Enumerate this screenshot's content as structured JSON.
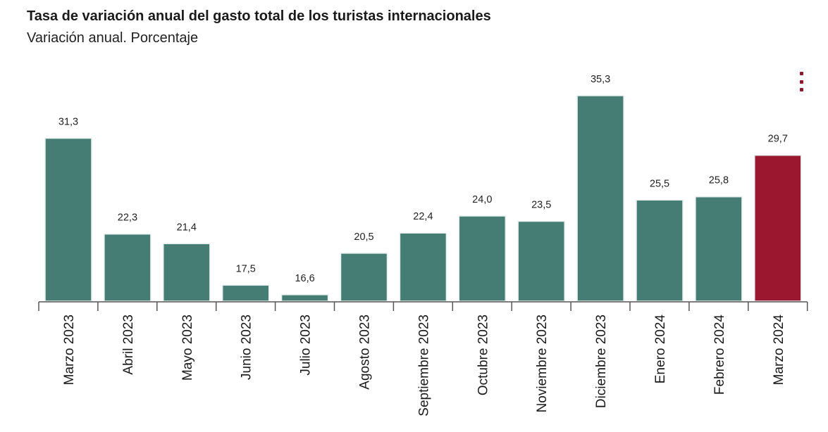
{
  "chart_data": {
    "type": "bar",
    "title": "Tasa de variación anual del gasto total de los turistas internacionales",
    "subtitle": "Variación anual. Porcentaje",
    "categories": [
      "Marzo 2023",
      "Abril 2023",
      "Mayo 2023",
      "Junio 2023",
      "Julio 2023",
      "Agosto 2023",
      "Septiembre 2023",
      "Octubre 2023",
      "Noviembre 2023",
      "Diciembre 2023",
      "Enero 2024",
      "Febrero 2024",
      "Marzo 2024"
    ],
    "values": [
      31.3,
      22.3,
      21.4,
      17.5,
      16.6,
      20.5,
      22.4,
      24.0,
      23.5,
      35.3,
      25.5,
      25.8,
      29.7
    ],
    "value_labels": [
      "31,3",
      "22,3",
      "21,4",
      "17,5",
      "16,6",
      "20,5",
      "22,4",
      "24,0",
      "23,5",
      "35,3",
      "25,5",
      "25,8",
      "29,7"
    ],
    "xlabel": "",
    "ylabel": "",
    "ylim": [
      16.0,
      35.3
    ],
    "grid": false,
    "colors": {
      "default": "#457d74",
      "highlight": "#9b1730",
      "highlight_index": 12
    }
  },
  "menu": {
    "icon": "more-vertical-icon"
  }
}
